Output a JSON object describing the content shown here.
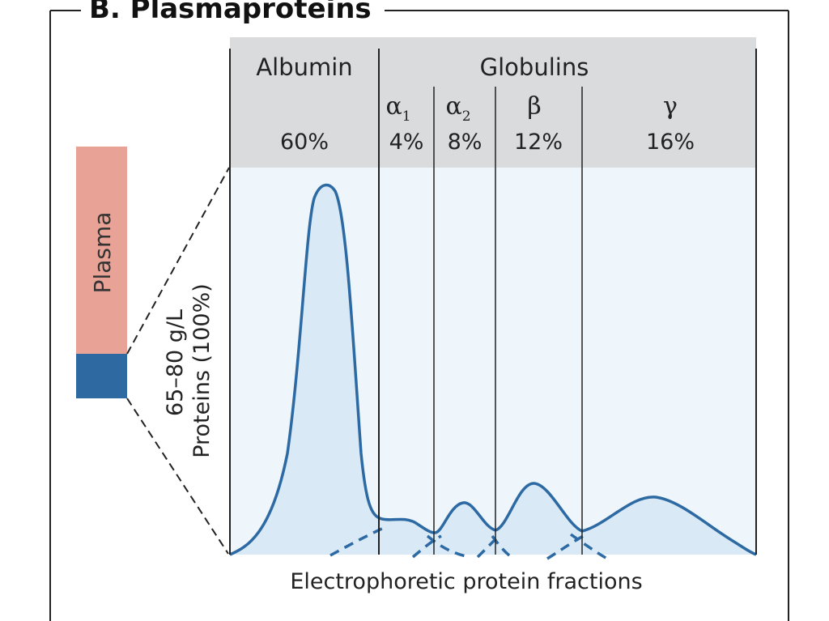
{
  "title": "B. Plasmaproteins",
  "plasma_label": "Plasma",
  "proteins_label_line1": "65–80 g/L",
  "proteins_label_line2": "Proteins (100%)",
  "globulins_label": "Globulins",
  "xlabel": "Electrophoretic protein fractions",
  "colors": {
    "plasma_fill": "#e8a396",
    "protein_fill": "#2e6aa1",
    "header_fill": "#d9dbdc",
    "curve_fill": "#d6e8f5",
    "curve_stroke": "#2d6aa3"
  },
  "chart_data": {
    "type": "area",
    "title": "B. Plasmaproteins",
    "xlabel": "Electrophoretic protein fractions",
    "ylabel": "",
    "categories": [
      "Albumin",
      "α1",
      "α2",
      "β",
      "γ"
    ],
    "subscripts": [
      "",
      "1",
      "2",
      "",
      ""
    ],
    "base_symbols": [
      "Albumin",
      "α",
      "α",
      "β",
      "γ"
    ],
    "values": [
      60,
      4,
      8,
      12,
      16
    ],
    "value_labels": [
      "60%",
      "4%",
      "8%",
      "12%",
      "16%"
    ],
    "units": "%",
    "grid": false,
    "legend": "none"
  }
}
